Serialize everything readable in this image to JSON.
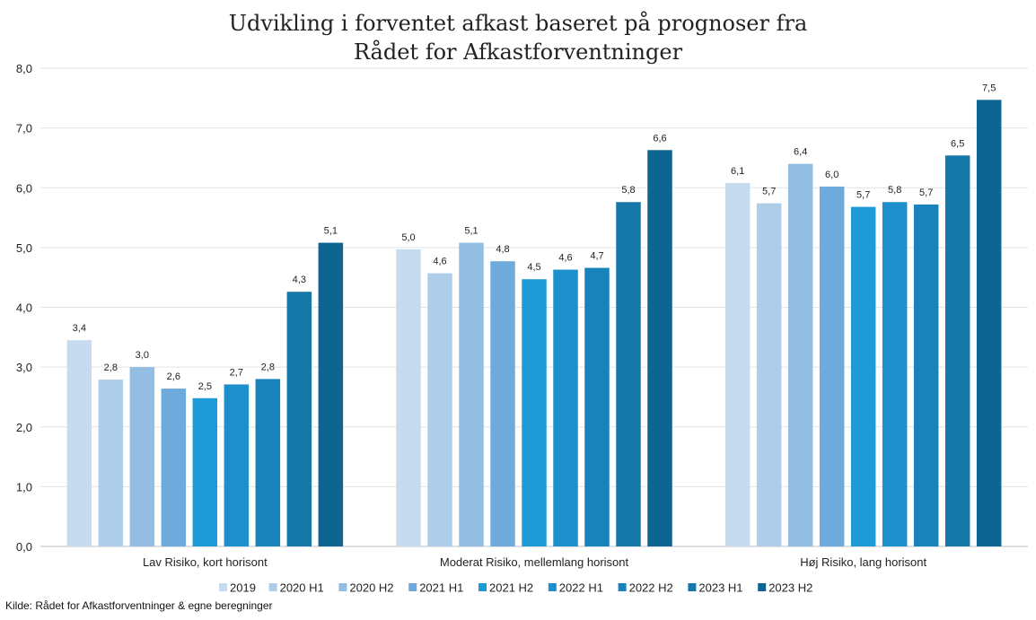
{
  "chart_data": {
    "type": "bar",
    "title_lines": [
      "Udvikling i forventet afkast baseret på prognoser fra",
      "Rådet for Afkastforventninger"
    ],
    "source": "Kilde: Rådet for  Afkastforventninger  & egne beregninger",
    "categories": [
      "Lav Risiko, kort horisont",
      "Moderat Risiko, mellemlang horisont",
      "Høj Risiko, lang horisont"
    ],
    "ylim": [
      0,
      8
    ],
    "yticks": [
      "0,0",
      "1,0",
      "2,0",
      "3,0",
      "4,0",
      "5,0",
      "6,0",
      "7,0",
      "8,0"
    ],
    "grid": true,
    "legend_position": "bottom",
    "series": [
      {
        "name": "2019",
        "color": "#c6dcee",
        "values": [
          3.45,
          4.97,
          6.08
        ],
        "labels": [
          "3,4",
          "5,0",
          "6,1"
        ]
      },
      {
        "name": "2020 H1",
        "color": "#aecde9",
        "values": [
          2.79,
          4.57,
          5.74
        ],
        "labels": [
          "2,8",
          "4,6",
          "5,7"
        ]
      },
      {
        "name": "2020 H2",
        "color": "#93bde3",
        "values": [
          3.0,
          5.08,
          6.4
        ],
        "labels": [
          "3,0",
          "5,1",
          "6,4"
        ]
      },
      {
        "name": "2021 H1",
        "color": "#6eaadb",
        "values": [
          2.64,
          4.77,
          6.02
        ],
        "labels": [
          "2,6",
          "4,8",
          "6,0"
        ]
      },
      {
        "name": "2021 H2",
        "color": "#1e9ad6",
        "values": [
          2.48,
          4.47,
          5.68
        ],
        "labels": [
          "2,5",
          "4,5",
          "5,7"
        ]
      },
      {
        "name": "2022 H1",
        "color": "#1d8fca",
        "values": [
          2.71,
          4.63,
          5.76
        ],
        "labels": [
          "2,7",
          "4,6",
          "5,8"
        ]
      },
      {
        "name": "2022 H2",
        "color": "#1982bb",
        "values": [
          2.8,
          4.66,
          5.72
        ],
        "labels": [
          "2,8",
          "4,7",
          "5,7"
        ]
      },
      {
        "name": "2023 H1",
        "color": "#1677a9",
        "values": [
          4.26,
          5.76,
          6.54
        ],
        "labels": [
          "4,3",
          "5,8",
          "6,5"
        ]
      },
      {
        "name": "2023 H2",
        "color": "#0f6591",
        "values": [
          5.08,
          6.63,
          7.47
        ],
        "labels": [
          "5,1",
          "6,6",
          "7,5"
        ]
      }
    ]
  }
}
